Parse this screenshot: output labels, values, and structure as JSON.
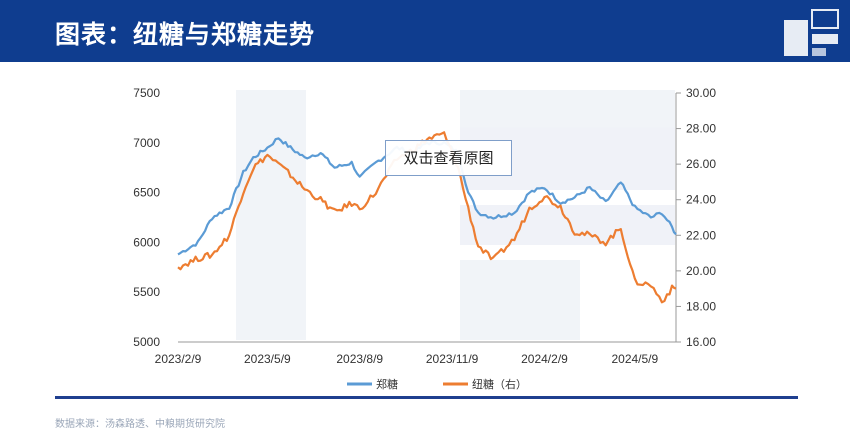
{
  "header": {
    "title": "图表：纽糖与郑糖走势"
  },
  "tooltip": {
    "label": "双击查看原图"
  },
  "source_note": "数据来源：汤森路透、中粮期货研究院",
  "colors": {
    "header_bg": "#0f3d8f",
    "zhengtang": "#5b9bd5",
    "niutang": "#ed7d31",
    "bottom_rule": "#1f3f8f"
  },
  "chart_data": {
    "type": "line",
    "title": "",
    "x_tick_labels": [
      "2023/2/9",
      "2023/5/9",
      "2023/8/9",
      "2023/11/9",
      "2024/2/9",
      "2024/5/9"
    ],
    "x_range": [
      "2023/2/9",
      "2024/6/19"
    ],
    "y_left": {
      "ticks": [
        "7500",
        "7000",
        "6500",
        "6000",
        "5500",
        "5000"
      ],
      "range": [
        5000,
        7500
      ]
    },
    "y_right": {
      "ticks": [
        "30.00",
        "28.00",
        "26.00",
        "24.00",
        "22.00",
        "20.00",
        "18.00",
        "16.00"
      ],
      "range": [
        16,
        30
      ]
    },
    "legend_position": "bottom",
    "series": [
      {
        "name": "郑糖",
        "axis": "left",
        "color": "#5b9bd5",
        "points": [
          [
            "2023/2/9",
            5880
          ],
          [
            "2023/3/1",
            6000
          ],
          [
            "2023/3/15",
            6250
          ],
          [
            "2023/4/1",
            6350
          ],
          [
            "2023/4/15",
            6700
          ],
          [
            "2023/4/25",
            6850
          ],
          [
            "2023/5/9",
            6950
          ],
          [
            "2023/5/20",
            7050
          ],
          [
            "2023/6/1",
            6950
          ],
          [
            "2023/6/15",
            6850
          ],
          [
            "2023/7/1",
            6900
          ],
          [
            "2023/7/15",
            6750
          ],
          [
            "2023/8/1",
            6800
          ],
          [
            "2023/8/9",
            6650
          ],
          [
            "2023/8/25",
            6800
          ],
          [
            "2023/9/15",
            6950
          ],
          [
            "2023/10/1",
            6900
          ],
          [
            "2023/10/15",
            7000
          ],
          [
            "2023/11/1",
            7000
          ],
          [
            "2023/11/15",
            6900
          ],
          [
            "2023/11/25",
            6500
          ],
          [
            "2023/12/5",
            6300
          ],
          [
            "2023/12/20",
            6250
          ],
          [
            "2024/1/10",
            6300
          ],
          [
            "2024/1/25",
            6500
          ],
          [
            "2024/2/9",
            6550
          ],
          [
            "2024/2/25",
            6400
          ],
          [
            "2024/3/10",
            6450
          ],
          [
            "2024/3/25",
            6550
          ],
          [
            "2024/4/10",
            6400
          ],
          [
            "2024/4/25",
            6600
          ],
          [
            "2024/5/9",
            6350
          ],
          [
            "2024/5/25",
            6250
          ],
          [
            "2024/6/5",
            6300
          ],
          [
            "2024/6/15",
            6150
          ],
          [
            "2024/6/19",
            6080
          ]
        ]
      },
      {
        "name": "纽糖（右）",
        "axis": "right",
        "color": "#ed7d31",
        "points": [
          [
            "2023/2/9",
            20.2
          ],
          [
            "2023/3/1",
            20.7
          ],
          [
            "2023/3/15",
            20.9
          ],
          [
            "2023/4/1",
            22.0
          ],
          [
            "2023/4/15",
            24.5
          ],
          [
            "2023/4/25",
            25.8
          ],
          [
            "2023/5/9",
            26.5
          ],
          [
            "2023/5/20",
            26.0
          ],
          [
            "2023/6/1",
            25.4
          ],
          [
            "2023/6/15",
            24.6
          ],
          [
            "2023/7/1",
            24.0
          ],
          [
            "2023/7/15",
            23.3
          ],
          [
            "2023/8/1",
            23.8
          ],
          [
            "2023/8/9",
            23.5
          ],
          [
            "2023/8/25",
            24.4
          ],
          [
            "2023/9/15",
            26.3
          ],
          [
            "2023/10/1",
            26.8
          ],
          [
            "2023/10/15",
            27.4
          ],
          [
            "2023/11/1",
            27.7
          ],
          [
            "2023/11/15",
            25.8
          ],
          [
            "2023/11/25",
            23.5
          ],
          [
            "2023/12/5",
            21.4
          ],
          [
            "2023/12/20",
            20.6
          ],
          [
            "2024/1/10",
            21.8
          ],
          [
            "2024/1/25",
            23.5
          ],
          [
            "2024/2/9",
            24.2
          ],
          [
            "2024/2/25",
            23.6
          ],
          [
            "2024/3/10",
            22.2
          ],
          [
            "2024/3/25",
            22.0
          ],
          [
            "2024/4/10",
            21.6
          ],
          [
            "2024/4/25",
            22.4
          ],
          [
            "2024/5/9",
            19.4
          ],
          [
            "2024/5/25",
            19.2
          ],
          [
            "2024/6/5",
            18.3
          ],
          [
            "2024/6/15",
            19.0
          ],
          [
            "2024/6/19",
            19.0
          ]
        ]
      }
    ]
  }
}
